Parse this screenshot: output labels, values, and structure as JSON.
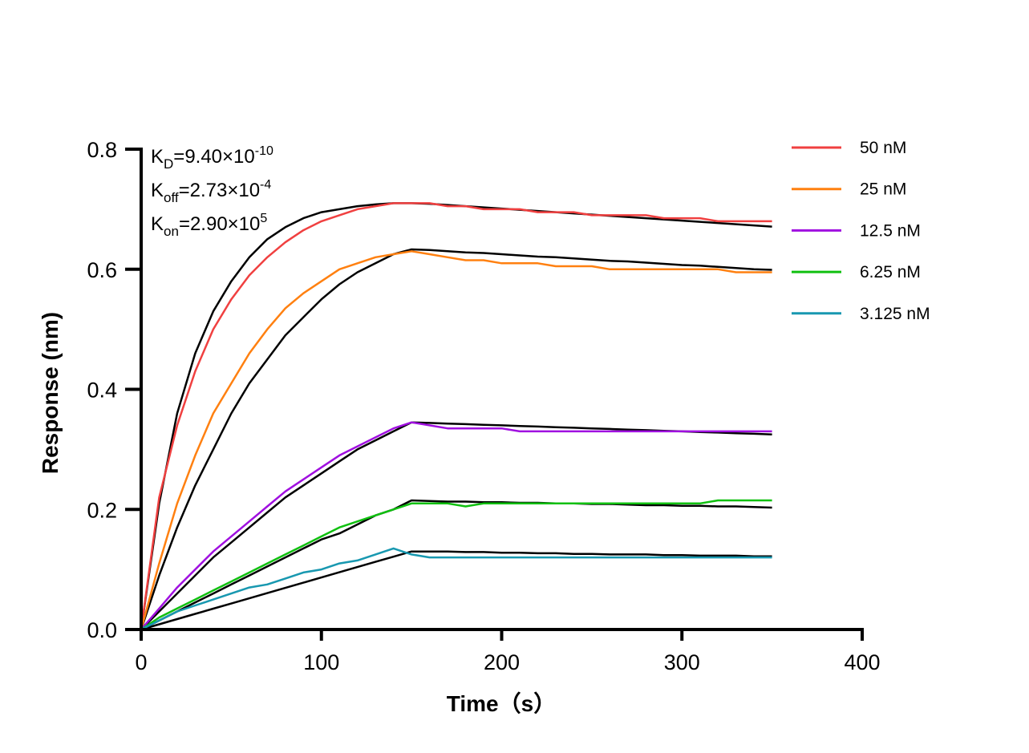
{
  "chart_data": {
    "type": "line",
    "title": "",
    "xlabel": "Time（s）",
    "ylabel": "Response (nm)",
    "xlim": [
      0,
      400
    ],
    "ylim": [
      0,
      0.8
    ],
    "xticks": [
      "0",
      "100",
      "200",
      "300",
      "400"
    ],
    "yticks": [
      "0.0",
      "0.2",
      "0.4",
      "0.6",
      "0.8"
    ],
    "grid": false,
    "legend_position": "top-right",
    "annotations": {
      "kd": {
        "base": "K",
        "sub": "D",
        "mant": "=9.40×10",
        "exp": "-10"
      },
      "koff": {
        "base": "K",
        "sub": "off",
        "mant": "=2.73×10",
        "exp": "-4"
      },
      "kon": {
        "base": "K",
        "sub": "on",
        "mant": "=2.90×10",
        "exp": "5"
      }
    },
    "fit_color": "#000000",
    "x": [
      0,
      10,
      20,
      30,
      40,
      50,
      60,
      70,
      80,
      90,
      100,
      110,
      120,
      130,
      140,
      150,
      160,
      170,
      180,
      190,
      200,
      210,
      220,
      230,
      240,
      250,
      260,
      270,
      280,
      290,
      300,
      310,
      320,
      330,
      340,
      350
    ],
    "series": [
      {
        "name": "50 nM",
        "color": "#f04040",
        "values": [
          0,
          0.22,
          0.34,
          0.43,
          0.5,
          0.55,
          0.59,
          0.62,
          0.645,
          0.665,
          0.68,
          0.69,
          0.7,
          0.705,
          0.71,
          0.71,
          0.71,
          0.705,
          0.705,
          0.7,
          0.7,
          0.7,
          0.695,
          0.695,
          0.695,
          0.69,
          0.69,
          0.69,
          0.69,
          0.685,
          0.685,
          0.685,
          0.68,
          0.68,
          0.68,
          0.68
        ],
        "fit": [
          0,
          0.21,
          0.36,
          0.46,
          0.53,
          0.58,
          0.62,
          0.65,
          0.67,
          0.685,
          0.695,
          0.7,
          0.705,
          0.708,
          0.71,
          0.71,
          0.709,
          0.707,
          0.705,
          0.703,
          0.701,
          0.699,
          0.697,
          0.695,
          0.693,
          0.691,
          0.689,
          0.687,
          0.685,
          0.683,
          0.681,
          0.679,
          0.677,
          0.675,
          0.673,
          0.671
        ]
      },
      {
        "name": "25 nM",
        "color": "#ff8010",
        "values": [
          0,
          0.11,
          0.21,
          0.29,
          0.36,
          0.41,
          0.46,
          0.5,
          0.535,
          0.56,
          0.58,
          0.6,
          0.61,
          0.62,
          0.625,
          0.63,
          0.625,
          0.62,
          0.615,
          0.615,
          0.61,
          0.61,
          0.61,
          0.605,
          0.605,
          0.605,
          0.6,
          0.6,
          0.6,
          0.6,
          0.6,
          0.6,
          0.6,
          0.595,
          0.595,
          0.595
        ],
        "fit": [
          0,
          0.09,
          0.17,
          0.24,
          0.3,
          0.36,
          0.41,
          0.45,
          0.49,
          0.52,
          0.55,
          0.575,
          0.595,
          0.61,
          0.625,
          0.633,
          0.632,
          0.63,
          0.628,
          0.627,
          0.625,
          0.623,
          0.621,
          0.62,
          0.618,
          0.616,
          0.614,
          0.613,
          0.611,
          0.609,
          0.607,
          0.606,
          0.604,
          0.602,
          0.6,
          0.599
        ]
      },
      {
        "name": "12.5 nM",
        "color": "#a010e0",
        "values": [
          0,
          0.035,
          0.07,
          0.1,
          0.13,
          0.155,
          0.18,
          0.205,
          0.23,
          0.25,
          0.27,
          0.29,
          0.305,
          0.32,
          0.335,
          0.345,
          0.34,
          0.335,
          0.335,
          0.335,
          0.335,
          0.33,
          0.33,
          0.33,
          0.33,
          0.33,
          0.33,
          0.33,
          0.33,
          0.33,
          0.33,
          0.33,
          0.33,
          0.33,
          0.33,
          0.33
        ],
        "fit": [
          0,
          0.03,
          0.06,
          0.09,
          0.12,
          0.145,
          0.17,
          0.195,
          0.22,
          0.24,
          0.26,
          0.28,
          0.3,
          0.315,
          0.33,
          0.345,
          0.344,
          0.343,
          0.342,
          0.341,
          0.34,
          0.339,
          0.338,
          0.337,
          0.336,
          0.335,
          0.334,
          0.333,
          0.332,
          0.331,
          0.33,
          0.329,
          0.328,
          0.327,
          0.326,
          0.325
        ]
      },
      {
        "name": "6.25 nM",
        "color": "#10c010",
        "values": [
          0,
          0.02,
          0.035,
          0.05,
          0.065,
          0.08,
          0.095,
          0.11,
          0.125,
          0.14,
          0.155,
          0.17,
          0.18,
          0.19,
          0.2,
          0.21,
          0.21,
          0.21,
          0.205,
          0.21,
          0.21,
          0.21,
          0.21,
          0.21,
          0.21,
          0.21,
          0.21,
          0.21,
          0.21,
          0.21,
          0.21,
          0.21,
          0.215,
          0.215,
          0.215,
          0.215
        ],
        "fit": [
          0,
          0.015,
          0.03,
          0.045,
          0.06,
          0.075,
          0.09,
          0.105,
          0.12,
          0.135,
          0.15,
          0.16,
          0.175,
          0.19,
          0.2,
          0.215,
          0.214,
          0.213,
          0.213,
          0.212,
          0.212,
          0.211,
          0.211,
          0.21,
          0.21,
          0.209,
          0.209,
          0.208,
          0.207,
          0.207,
          0.206,
          0.206,
          0.205,
          0.205,
          0.204,
          0.203
        ]
      },
      {
        "name": "3.125 nM",
        "color": "#1898b0",
        "values": [
          0,
          0.015,
          0.03,
          0.04,
          0.05,
          0.06,
          0.07,
          0.075,
          0.085,
          0.095,
          0.1,
          0.11,
          0.115,
          0.125,
          0.135,
          0.125,
          0.12,
          0.12,
          0.12,
          0.12,
          0.12,
          0.12,
          0.12,
          0.12,
          0.12,
          0.12,
          0.12,
          0.12,
          0.12,
          0.12,
          0.12,
          0.12,
          0.12,
          0.12,
          0.12,
          0.12
        ],
        "fit": [
          0,
          0.0087,
          0.0173,
          0.026,
          0.0347,
          0.0433,
          0.052,
          0.0607,
          0.0693,
          0.078,
          0.0867,
          0.0953,
          0.104,
          0.1127,
          0.1213,
          0.13,
          0.13,
          0.13,
          0.129,
          0.129,
          0.128,
          0.128,
          0.127,
          0.127,
          0.126,
          0.126,
          0.125,
          0.125,
          0.125,
          0.124,
          0.124,
          0.123,
          0.123,
          0.123,
          0.122,
          0.122
        ]
      }
    ]
  }
}
